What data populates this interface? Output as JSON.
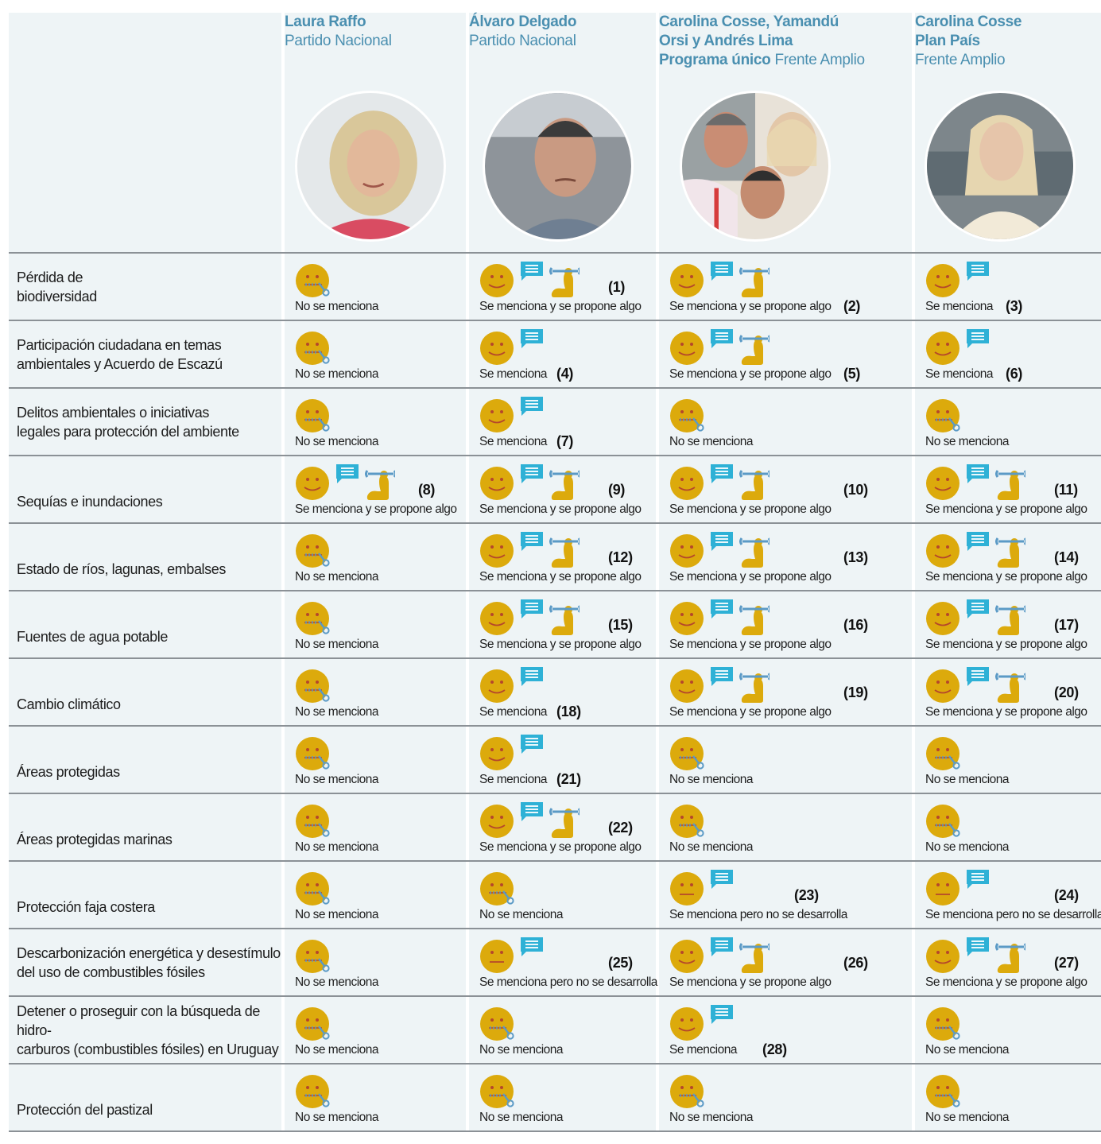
{
  "candidates": [
    {
      "name": "Laura Raffo",
      "sub_bold": "",
      "sub": "Partido Nacional",
      "photo": "laura-raffo-photo"
    },
    {
      "name": "Álvaro Delgado",
      "sub_bold": "",
      "sub": "Partido Nacional",
      "photo": "alvaro-delgado-photo"
    },
    {
      "name": "Carolina Cosse, Yamandú Orsi y Andrés Lima",
      "sub_bold": "Programa único",
      "sub": "Frente Amplio",
      "photo": "frente-amplio-group-photo"
    },
    {
      "name": "Carolina Cosse",
      "sub_bold": "Plan País",
      "sub": "Frente Amplio",
      "photo": "carolina-cosse-photo"
    }
  ],
  "status_labels": {
    "none": "No se menciona",
    "mentioned": "Se menciona",
    "proposes": "Se menciona y se propone algo",
    "undeveloped": "Se menciona pero no se desarrolla"
  },
  "colors": {
    "face": "#dcaa0c",
    "face_features": "#b5472b",
    "chat": "#2eb1d6",
    "wrench": "#5b9ac6",
    "heading": "#4a8fb0",
    "cell_bg": "#eef4f6",
    "divider": "#8b9196"
  },
  "rows": [
    {
      "topic": [
        "Pérdida de",
        "biodiversidad"
      ],
      "cells": [
        {
          "status": "none",
          "note": ""
        },
        {
          "status": "proposes",
          "note": "(1)"
        },
        {
          "status": "proposes",
          "note": "(2)"
        },
        {
          "status": "mentioned",
          "note": "(3)"
        }
      ]
    },
    {
      "topic": [
        "Participación ciudadana en temas",
        "ambientales y Acuerdo de Escazú"
      ],
      "cells": [
        {
          "status": "none",
          "note": ""
        },
        {
          "status": "mentioned",
          "note": "(4)"
        },
        {
          "status": "proposes",
          "note": "(5)"
        },
        {
          "status": "mentioned",
          "note": "(6)"
        }
      ]
    },
    {
      "topic": [
        "Delitos ambientales  o iniciativas",
        "legales para protección del ambiente"
      ],
      "cells": [
        {
          "status": "none",
          "note": ""
        },
        {
          "status": "mentioned",
          "note": "(7)"
        },
        {
          "status": "none",
          "note": ""
        },
        {
          "status": "none",
          "note": ""
        }
      ]
    },
    {
      "topic": [
        "Sequías e inundaciones"
      ],
      "cells": [
        {
          "status": "proposes",
          "note": "(8)"
        },
        {
          "status": "proposes",
          "note": "(9)"
        },
        {
          "status": "proposes",
          "note": "(10)"
        },
        {
          "status": "proposes",
          "note": "(11)"
        }
      ]
    },
    {
      "topic": [
        "Estado de ríos, lagunas, embalses"
      ],
      "cells": [
        {
          "status": "none",
          "note": ""
        },
        {
          "status": "proposes",
          "note": "(12)"
        },
        {
          "status": "proposes",
          "note": "(13)"
        },
        {
          "status": "proposes",
          "note": "(14)"
        }
      ]
    },
    {
      "topic": [
        "Fuentes de agua potable"
      ],
      "cells": [
        {
          "status": "none",
          "note": ""
        },
        {
          "status": "proposes",
          "note": "(15)"
        },
        {
          "status": "proposes",
          "note": "(16)"
        },
        {
          "status": "proposes",
          "note": "(17)"
        }
      ]
    },
    {
      "topic": [
        "Cambio climático"
      ],
      "cells": [
        {
          "status": "none",
          "note": ""
        },
        {
          "status": "mentioned",
          "note": "(18)"
        },
        {
          "status": "proposes",
          "note": "(19)"
        },
        {
          "status": "proposes",
          "note": "(20)"
        }
      ]
    },
    {
      "topic": [
        "Áreas protegidas"
      ],
      "cells": [
        {
          "status": "none",
          "note": ""
        },
        {
          "status": "mentioned",
          "note": "(21)"
        },
        {
          "status": "none",
          "note": ""
        },
        {
          "status": "none",
          "note": ""
        }
      ]
    },
    {
      "topic": [
        "Áreas protegidas marinas"
      ],
      "cells": [
        {
          "status": "none",
          "note": ""
        },
        {
          "status": "proposes",
          "note": "(22)"
        },
        {
          "status": "none",
          "note": ""
        },
        {
          "status": "none",
          "note": ""
        }
      ]
    },
    {
      "topic": [
        "Protección faja costera"
      ],
      "cells": [
        {
          "status": "none",
          "note": ""
        },
        {
          "status": "none",
          "note": ""
        },
        {
          "status": "undeveloped",
          "note": "(23)"
        },
        {
          "status": "undeveloped",
          "note": "(24)"
        }
      ]
    },
    {
      "topic": [
        "Descarbonización energética y desestímulo",
        "del uso de combustibles fósiles"
      ],
      "cells": [
        {
          "status": "none",
          "note": ""
        },
        {
          "status": "undeveloped",
          "note": "(25)"
        },
        {
          "status": "proposes",
          "note": "(26)"
        },
        {
          "status": "proposes",
          "note": "(27)"
        }
      ]
    },
    {
      "topic": [
        "Detener o proseguir con la búsqueda de hidro-",
        "carburos (combustibles fósiles) en Uruguay"
      ],
      "cells": [
        {
          "status": "none",
          "note": ""
        },
        {
          "status": "none",
          "note": ""
        },
        {
          "status": "mentioned",
          "note": "(28)"
        },
        {
          "status": "none",
          "note": ""
        }
      ]
    },
    {
      "topic": [
        "Protección del pastizal"
      ],
      "cells": [
        {
          "status": "none",
          "note": ""
        },
        {
          "status": "none",
          "note": ""
        },
        {
          "status": "none",
          "note": ""
        },
        {
          "status": "none",
          "note": ""
        }
      ]
    }
  ]
}
